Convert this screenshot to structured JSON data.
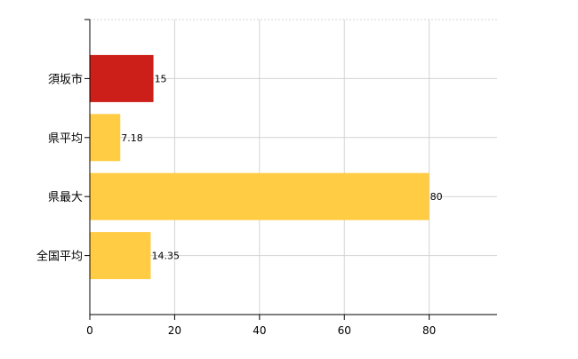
{
  "chart_data": {
    "type": "bar",
    "orientation": "horizontal",
    "categories": [
      "須坂市",
      "県平均",
      "県最大",
      "全国平均"
    ],
    "values": [
      15,
      7.18,
      80,
      14.35
    ],
    "value_labels": [
      "15",
      "7.18",
      "80",
      "14.35"
    ],
    "bar_colors": [
      "#cc1f1a",
      "#ffcc44",
      "#ffcc44",
      "#ffcc44"
    ],
    "x_ticks": [
      0,
      20,
      40,
      60,
      80
    ],
    "xlim": [
      0,
      96
    ],
    "grid": true,
    "title": "",
    "xlabel": "",
    "ylabel": ""
  }
}
